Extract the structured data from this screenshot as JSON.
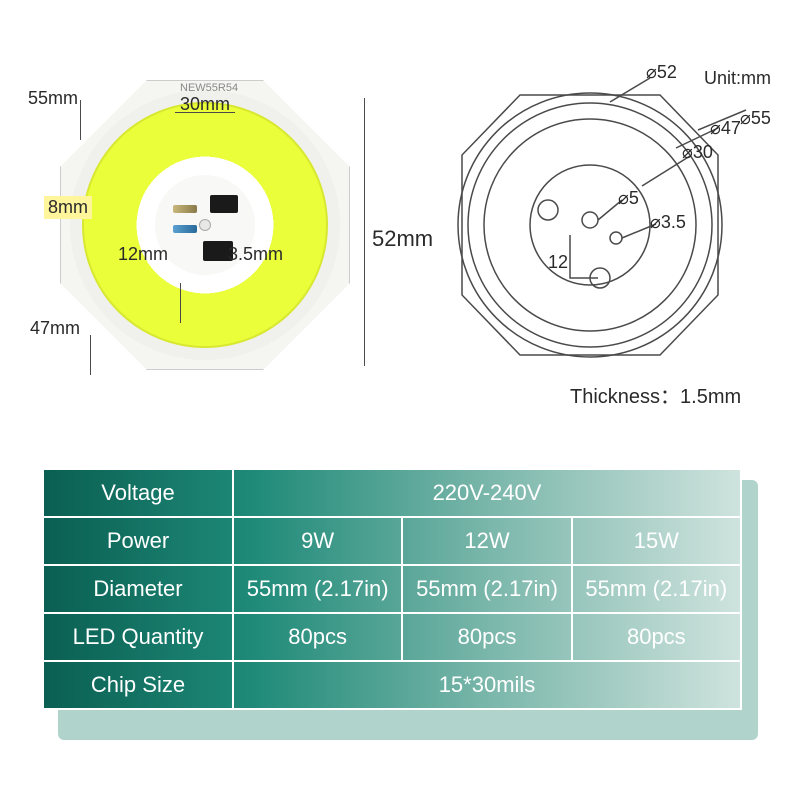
{
  "photo": {
    "part_code": "NEW55R54",
    "labels": {
      "d55": "55mm",
      "d30": "30mm",
      "d8": "8mm",
      "d12": "12mm",
      "d3_5": "3.5mm",
      "d47": "47mm",
      "d52": "52mm"
    },
    "colors": {
      "ring": "#eaff3a",
      "octagon": "#f5f5f2",
      "pcb": "#f8f8f6"
    }
  },
  "line_diagram": {
    "unit_label": "Unit:mm",
    "thickness_label": "Thickness：",
    "thickness_value": "1.5mm",
    "callouts": {
      "d52": "52",
      "d55": "55",
      "d47": "47",
      "d30": "30",
      "d5": "5",
      "d3_5": "3.5",
      "d12": "12"
    },
    "phi": "⌀"
  },
  "spec_table": {
    "rows": [
      {
        "label": "Voltage",
        "values": [
          "220V-240V"
        ],
        "colspan": 3
      },
      {
        "label": "Power",
        "values": [
          "9W",
          "12W",
          "15W"
        ]
      },
      {
        "label": "Diameter",
        "values": [
          "55mm (2.17in)",
          "55mm (2.17in)",
          "55mm (2.17in)"
        ]
      },
      {
        "label": "LED Quantity",
        "values": [
          "80pcs",
          "80pcs",
          "80pcs"
        ]
      },
      {
        "label": "Chip Size",
        "values": [
          "15*30mils"
        ],
        "colspan": 3
      }
    ],
    "style": {
      "bg_gradient": [
        "#0a5f52",
        "#1f8a78",
        "#7db8ac",
        "#cfe3de"
      ],
      "text_color": "#ffffff",
      "border_color": "#ffffff",
      "font_size": 22,
      "shadow_color": "#b0d4cc"
    }
  }
}
